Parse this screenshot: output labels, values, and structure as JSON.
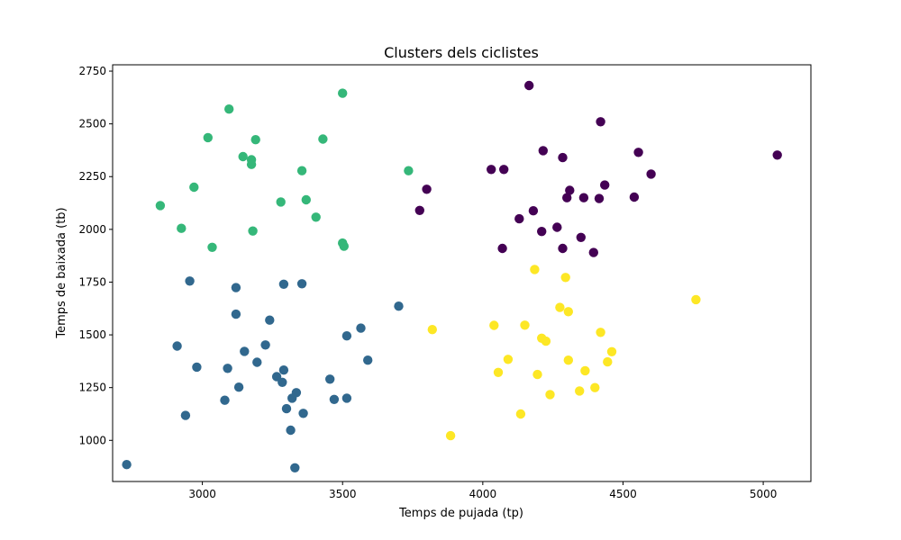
{
  "chart_data": {
    "type": "scatter",
    "title": "Clusters dels ciclistes",
    "xlabel": "Temps de pujada (tp)",
    "ylabel": "Temps de baixada (tb)",
    "xlim": [
      2680,
      5170
    ],
    "ylim": [
      805,
      2780
    ],
    "xticks": [
      3000,
      3500,
      4000,
      4500,
      5000
    ],
    "yticks": [
      1000,
      1250,
      1500,
      1750,
      2000,
      2250,
      2500,
      2750
    ],
    "grid": false,
    "series": [
      {
        "color": "#440154",
        "points": [
          [
            4165,
            2682
          ],
          [
            4420,
            2510
          ],
          [
            4555,
            2365
          ],
          [
            4215,
            2373
          ],
          [
            4285,
            2340
          ],
          [
            4600,
            2262
          ],
          [
            4030,
            2284
          ],
          [
            4075,
            2284
          ],
          [
            3800,
            2190
          ],
          [
            4310,
            2185
          ],
          [
            4300,
            2150
          ],
          [
            4360,
            2150
          ],
          [
            4415,
            2146
          ],
          [
            4435,
            2210
          ],
          [
            4540,
            2153
          ],
          [
            3775,
            2090
          ],
          [
            4180,
            2088
          ],
          [
            4130,
            2050
          ],
          [
            4265,
            2010
          ],
          [
            4210,
            1990
          ],
          [
            4350,
            1962
          ],
          [
            4070,
            1910
          ],
          [
            4285,
            1910
          ],
          [
            4395,
            1890
          ],
          [
            5050,
            2352
          ]
        ]
      },
      {
        "color": "#31688e",
        "points": [
          [
            2955,
            1755
          ],
          [
            3120,
            1724
          ],
          [
            3290,
            1740
          ],
          [
            3355,
            1742
          ],
          [
            3120,
            1598
          ],
          [
            3700,
            1636
          ],
          [
            3240,
            1570
          ],
          [
            3565,
            1532
          ],
          [
            3515,
            1495
          ],
          [
            2910,
            1447
          ],
          [
            3225,
            1452
          ],
          [
            3150,
            1422
          ],
          [
            3195,
            1370
          ],
          [
            3590,
            1380
          ],
          [
            2980,
            1347
          ],
          [
            3090,
            1341
          ],
          [
            3290,
            1333
          ],
          [
            3265,
            1302
          ],
          [
            3285,
            1275
          ],
          [
            3455,
            1290
          ],
          [
            3130,
            1252
          ],
          [
            3335,
            1226
          ],
          [
            3320,
            1200
          ],
          [
            3080,
            1190
          ],
          [
            3470,
            1194
          ],
          [
            3515,
            1200
          ],
          [
            3300,
            1150
          ],
          [
            3360,
            1128
          ],
          [
            2940,
            1118
          ],
          [
            3315,
            1048
          ],
          [
            2730,
            885
          ],
          [
            3330,
            870
          ]
        ]
      },
      {
        "color": "#35b779",
        "points": [
          [
            3500,
            2645
          ],
          [
            3095,
            2570
          ],
          [
            3020,
            2435
          ],
          [
            3190,
            2425
          ],
          [
            3430,
            2428
          ],
          [
            3145,
            2345
          ],
          [
            3175,
            2330
          ],
          [
            3175,
            2308
          ],
          [
            3355,
            2278
          ],
          [
            3735,
            2278
          ],
          [
            2970,
            2200
          ],
          [
            3370,
            2140
          ],
          [
            3280,
            2130
          ],
          [
            2850,
            2113
          ],
          [
            3405,
            2058
          ],
          [
            2925,
            2005
          ],
          [
            3180,
            1992
          ],
          [
            3500,
            1935
          ],
          [
            3505,
            1920
          ],
          [
            3035,
            1915
          ]
        ]
      },
      {
        "color": "#fde725",
        "points": [
          [
            4185,
            1810
          ],
          [
            4295,
            1772
          ],
          [
            4760,
            1667
          ],
          [
            4275,
            1630
          ],
          [
            4305,
            1610
          ],
          [
            4040,
            1545
          ],
          [
            4150,
            1546
          ],
          [
            3820,
            1525
          ],
          [
            4420,
            1512
          ],
          [
            4210,
            1484
          ],
          [
            4225,
            1470
          ],
          [
            4460,
            1420
          ],
          [
            4090,
            1384
          ],
          [
            4305,
            1380
          ],
          [
            4445,
            1372
          ],
          [
            4365,
            1330
          ],
          [
            4055,
            1322
          ],
          [
            4195,
            1312
          ],
          [
            4400,
            1250
          ],
          [
            4345,
            1234
          ],
          [
            4240,
            1217
          ],
          [
            4135,
            1125
          ],
          [
            3885,
            1022
          ]
        ]
      }
    ]
  }
}
